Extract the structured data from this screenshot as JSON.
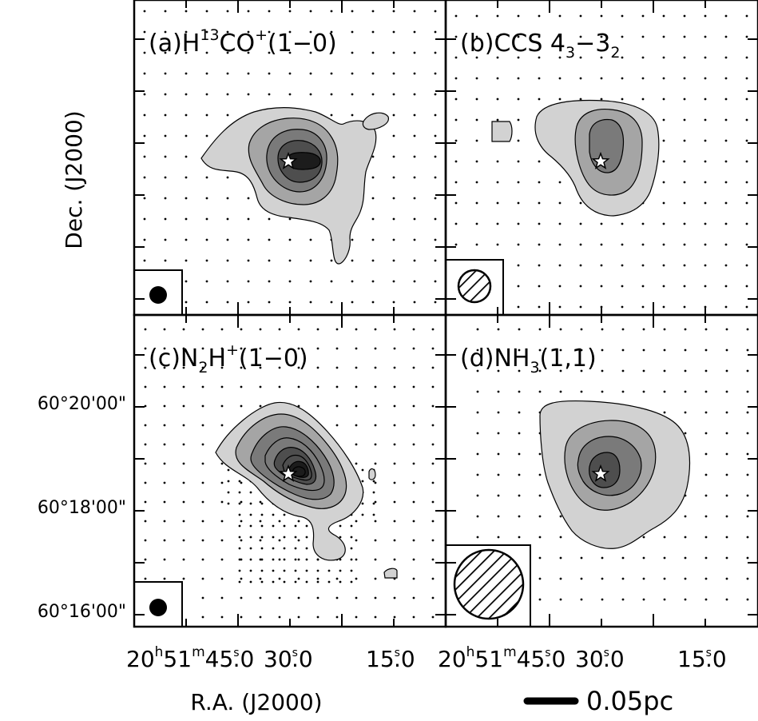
{
  "figure": {
    "ylabel": "Dec. (J2000)",
    "xlabel": "R.A. (J2000)",
    "scalebar_label": "0.05pc",
    "dec_ticks": [
      "60°20'00\"",
      "60°18'00\"",
      "60°16'00\""
    ],
    "ra_ticks": [
      {
        "h": "20",
        "h_unit": "h",
        "m": "51",
        "m_unit": "m",
        "s": "45",
        "dec": "0"
      },
      {
        "s": "30",
        "dec": "0"
      },
      {
        "s": "15",
        "dec": "0"
      }
    ],
    "ra_tick_sec_unit": "s",
    "colors": {
      "ink": "#000000",
      "bg": "#ffffff",
      "fills": [
        "#d2d2d2",
        "#a5a5a5",
        "#7a7a7a",
        "#4e4e4e",
        "#1c1c1c"
      ]
    }
  },
  "chart_data": [
    {
      "type": "contour",
      "panel": "a",
      "label_prefix": "(a)H",
      "label_sup1": "13",
      "label_mid": "CO",
      "label_sup2": "+",
      "label_suffix": "(1−0)",
      "levels": 5,
      "beam": "filled",
      "source_marker": "star"
    },
    {
      "type": "contour",
      "panel": "b",
      "label_prefix": "(b)CCS 4",
      "label_sub1": "3",
      "label_mid": "−3",
      "label_sub2": "2",
      "levels": 3,
      "beam": "hatched",
      "source_marker": "star"
    },
    {
      "type": "contour",
      "panel": "c",
      "label_prefix": "(c)N",
      "label_sub1": "2",
      "label_mid": "H",
      "label_sup2": "+",
      "label_suffix": "(1−0)",
      "levels": 8,
      "beam": "filled",
      "source_marker": "star"
    },
    {
      "type": "contour",
      "panel": "d",
      "label_prefix": "(d)NH",
      "label_sub1": "3",
      "label_suffix": "(1,1)",
      "levels": 4,
      "beam": "hatched",
      "source_marker": "star"
    }
  ]
}
